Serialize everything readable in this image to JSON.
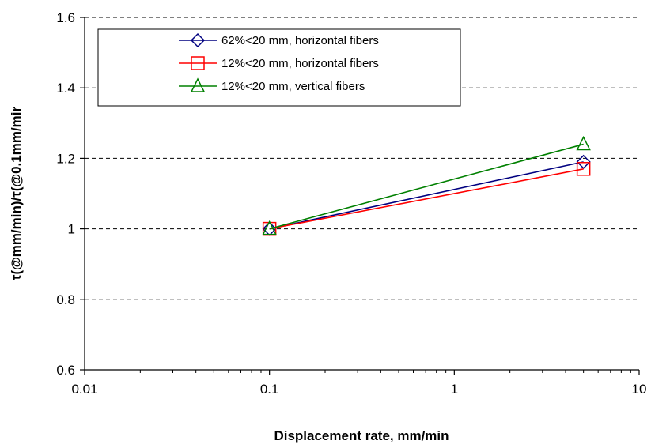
{
  "chart_data": {
    "type": "line",
    "title": "",
    "xlabel": "Displacement rate, mm/min",
    "ylabel": "τ(@mm/min)/τ(@0.1mm/mir",
    "xscale": "log",
    "xlim": [
      0.01,
      10
    ],
    "ylim": [
      0.6,
      1.6
    ],
    "x_ticks": [
      0.01,
      0.1,
      1,
      10
    ],
    "x_tick_labels": [
      "0.01",
      "0.1",
      "1",
      "10"
    ],
    "y_ticks": [
      0.6,
      0.8,
      1.0,
      1.2,
      1.4,
      1.6
    ],
    "y_tick_labels": [
      "0.6",
      "0.8",
      "1",
      "1.2",
      "1.4",
      "1.6"
    ],
    "grid": "horizontal dashed",
    "legend_position": "top-left",
    "series": [
      {
        "name": "62%<20 mm, horizontal fibers",
        "color": "#000080",
        "marker": "diamond",
        "x": [
          0.1,
          5
        ],
        "y": [
          1.0,
          1.19
        ]
      },
      {
        "name": "12%<20 mm, horizontal fibers",
        "color": "#ff0000",
        "marker": "square",
        "x": [
          0.1,
          5
        ],
        "y": [
          1.0,
          1.17
        ]
      },
      {
        "name": "12%<20 mm, vertical fibers",
        "color": "#008000",
        "marker": "triangle",
        "x": [
          0.1,
          5
        ],
        "y": [
          1.0,
          1.24
        ]
      }
    ]
  }
}
